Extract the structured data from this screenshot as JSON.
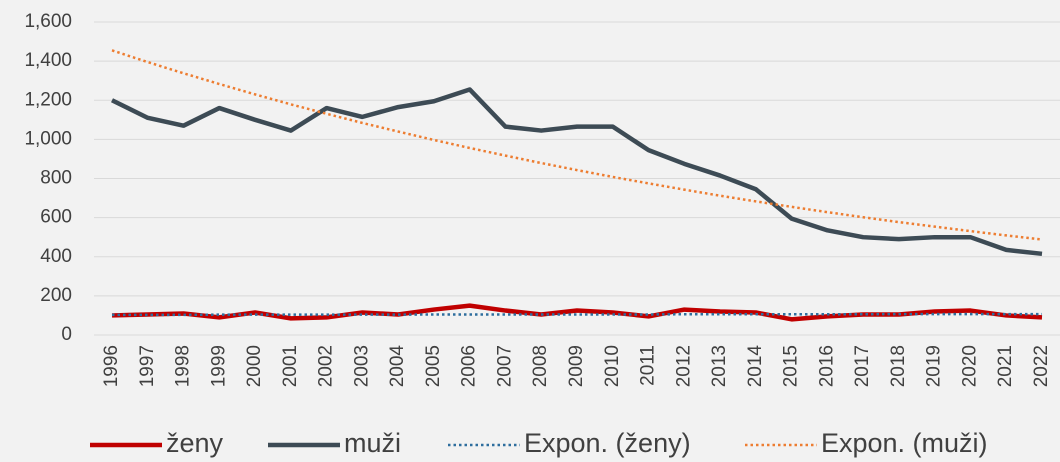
{
  "chart_data": {
    "type": "line",
    "categories": [
      "1996",
      "1997",
      "1998",
      "1999",
      "2000",
      "2001",
      "2002",
      "2003",
      "2004",
      "2005",
      "2006",
      "2007",
      "2008",
      "2009",
      "2010",
      "2011",
      "2012",
      "2013",
      "2014",
      "2015",
      "2016",
      "2017",
      "2018",
      "2019",
      "2020",
      "2021",
      "2022"
    ],
    "series": [
      {
        "name": "ženy",
        "color": "#c00000",
        "line_style": "solid",
        "values": [
          100,
          105,
          110,
          90,
          115,
          85,
          90,
          115,
          105,
          130,
          150,
          125,
          105,
          125,
          115,
          95,
          130,
          120,
          115,
          80,
          95,
          105,
          105,
          120,
          125,
          100,
          90
        ]
      },
      {
        "name": "muži",
        "color": "#3d4b55",
        "line_style": "solid",
        "values": [
          1200,
          1110,
          1070,
          1160,
          1100,
          1045,
          1160,
          1115,
          1165,
          1195,
          1255,
          1065,
          1045,
          1065,
          1065,
          945,
          875,
          815,
          745,
          595,
          535,
          500,
          490,
          500,
          500,
          435,
          415
        ]
      },
      {
        "name": "Expon. (ženy)",
        "color": "#2e6e9e",
        "line_style": "dotted",
        "values": [
          103,
          103,
          103,
          104,
          104,
          104,
          104,
          104,
          104,
          105,
          105,
          105,
          105,
          105,
          105,
          105,
          106,
          106,
          106,
          106,
          106,
          106,
          107,
          107,
          107,
          107,
          107
        ]
      },
      {
        "name": "Expon. (muži)",
        "color": "#ed7d31",
        "line_style": "dotted",
        "values": [
          1455,
          1395,
          1338,
          1283,
          1230,
          1179,
          1131,
          1084,
          1040,
          997,
          956,
          917,
          879,
          843,
          808,
          775,
          743,
          712,
          683,
          655,
          628,
          602,
          577,
          554,
          531,
          509,
          488
        ]
      }
    ],
    "ylim": [
      0,
      1600
    ],
    "yticks": [
      0,
      200,
      400,
      600,
      800,
      {
        "value": 1000,
        "label": "1,000"
      },
      {
        "value": 1200,
        "label": "1,200"
      },
      {
        "value": 1400,
        "label": "1,400"
      },
      {
        "value": 1600,
        "label": "1,600"
      }
    ],
    "grid": true,
    "legend": "bottom"
  }
}
